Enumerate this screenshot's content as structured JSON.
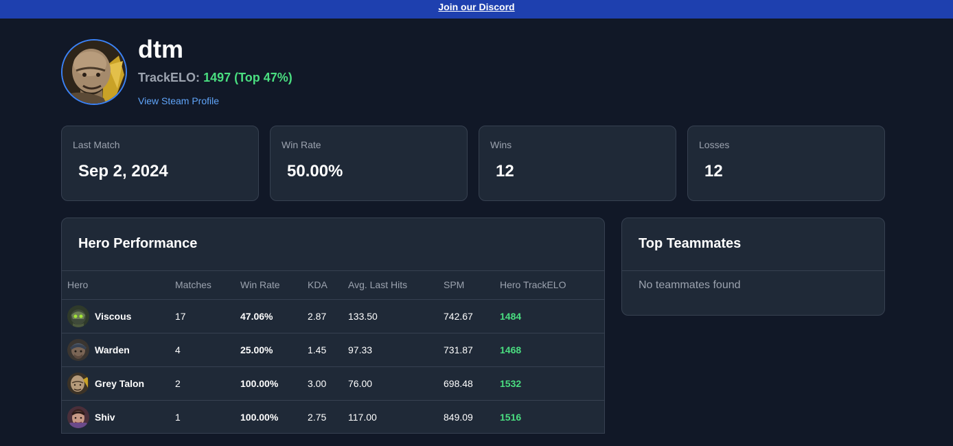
{
  "banner": {
    "link_text": "Join our Discord"
  },
  "profile": {
    "username": "dtm",
    "elo_label": "TrackELO:",
    "elo_value": "1497 (Top 47%)",
    "steam_link": "View Steam Profile",
    "avatar_icon": "grey-talon-avatar-icon"
  },
  "stats": [
    {
      "label": "Last Match",
      "value": "Sep 2, 2024"
    },
    {
      "label": "Win Rate",
      "value": "50.00%"
    },
    {
      "label": "Wins",
      "value": "12"
    },
    {
      "label": "Losses",
      "value": "12"
    }
  ],
  "hero_performance": {
    "title": "Hero Performance",
    "columns": [
      "Hero",
      "Matches",
      "Win Rate",
      "KDA",
      "Avg. Last Hits",
      "SPM",
      "Hero TrackELO"
    ],
    "rows": [
      {
        "hero": "Viscous",
        "icon": "viscous-icon",
        "matches": "17",
        "win_rate": "47.06%",
        "kda": "2.87",
        "avg_last_hits": "133.50",
        "spm": "742.67",
        "elo": "1484"
      },
      {
        "hero": "Warden",
        "icon": "warden-icon",
        "matches": "4",
        "win_rate": "25.00%",
        "kda": "1.45",
        "avg_last_hits": "97.33",
        "spm": "731.87",
        "elo": "1468"
      },
      {
        "hero": "Grey Talon",
        "icon": "grey-talon-icon",
        "matches": "2",
        "win_rate": "100.00%",
        "kda": "3.00",
        "avg_last_hits": "76.00",
        "spm": "698.48",
        "elo": "1532"
      },
      {
        "hero": "Shiv",
        "icon": "shiv-icon",
        "matches": "1",
        "win_rate": "100.00%",
        "kda": "2.75",
        "avg_last_hits": "117.00",
        "spm": "849.09",
        "elo": "1516"
      }
    ]
  },
  "top_teammates": {
    "title": "Top Teammates",
    "empty_text": "No teammates found"
  },
  "colors": {
    "background": "#111827",
    "card": "#1f2937",
    "banner": "#1e40af",
    "elo_green": "#4ade80",
    "link_blue": "#60a5fa"
  }
}
